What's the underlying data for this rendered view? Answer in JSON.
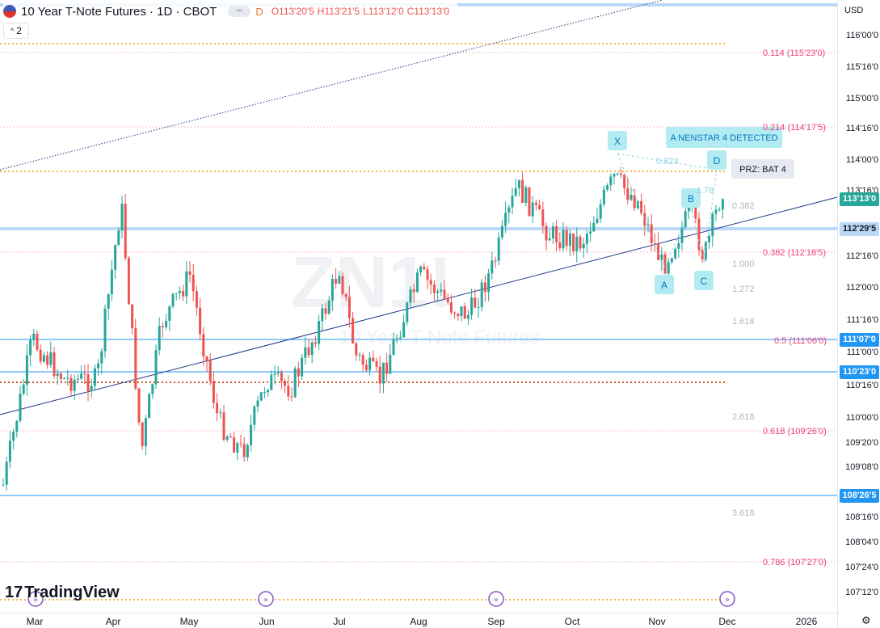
{
  "header": {
    "symbol": "10 Year T-Note Futures · 1D · CBOT",
    "d_badge": "D",
    "open": "O113'20'5",
    "high": "H113'21'5",
    "low": "L113'12'0",
    "close": "C113'13'0",
    "interval_box": "2"
  },
  "axis": {
    "currency": "USD",
    "labels": [
      "116'00'0",
      "115'16'0",
      "115'00'0",
      "114'16'0",
      "114'00'0",
      "113'16'0",
      "112'16'0",
      "112'00'0",
      "111'16'0",
      "111'00'0",
      "110'16'0",
      "110'00'0",
      "109'20'0",
      "109'08'0",
      "108'16'0",
      "108'04'0",
      "107'24'0",
      "107'12'0"
    ],
    "tags": [
      {
        "text": "113'13'0",
        "bg": "#26a69a",
        "fg": "#ffffff"
      },
      {
        "text": "112'29'5",
        "bg": "#bbd9f6",
        "fg": "#131722"
      },
      {
        "text": "111'07'0",
        "bg": "#2196f3",
        "fg": "#ffffff"
      },
      {
        "text": "110'23'0",
        "bg": "#2196f3",
        "fg": "#ffffff"
      },
      {
        "text": "108'26'5",
        "bg": "#2196f3",
        "fg": "#ffffff"
      }
    ]
  },
  "fib_levels": [
    {
      "text": "0.114 (115'23'0)"
    },
    {
      "text": "0.214 (114'17'5)"
    },
    {
      "text": "0.382 (112'18'5)"
    },
    {
      "text": "0.5 (111'06'0)"
    },
    {
      "text": "0.618 (109'26'0)"
    },
    {
      "text": "0.786 (107'27'0)"
    }
  ],
  "harmonic": {
    "points": [
      "X",
      "A",
      "B",
      "C",
      "D"
    ],
    "detected": "A NENSTAR 4 DETECTED",
    "prz": "PRZ: BAT 4",
    "ratios": [
      "0.823",
      "0.382",
      "1.000",
      "1.272",
      "1.618",
      "2.618",
      "3.618",
      "0.618",
      "1.78"
    ]
  },
  "x_axis": [
    "Mar",
    "Apr",
    "May",
    "Jun",
    "Jul",
    "Aug",
    "Sep",
    "Oct",
    "Nov",
    "Dec",
    "2026"
  ],
  "watermark": "ZN1!",
  "watermark_sub": "10 Year T-Note Futures",
  "logo": "TradingView",
  "colors": {
    "up": "#26a69a",
    "down": "#ef5350",
    "accent": "#2196f3"
  }
}
